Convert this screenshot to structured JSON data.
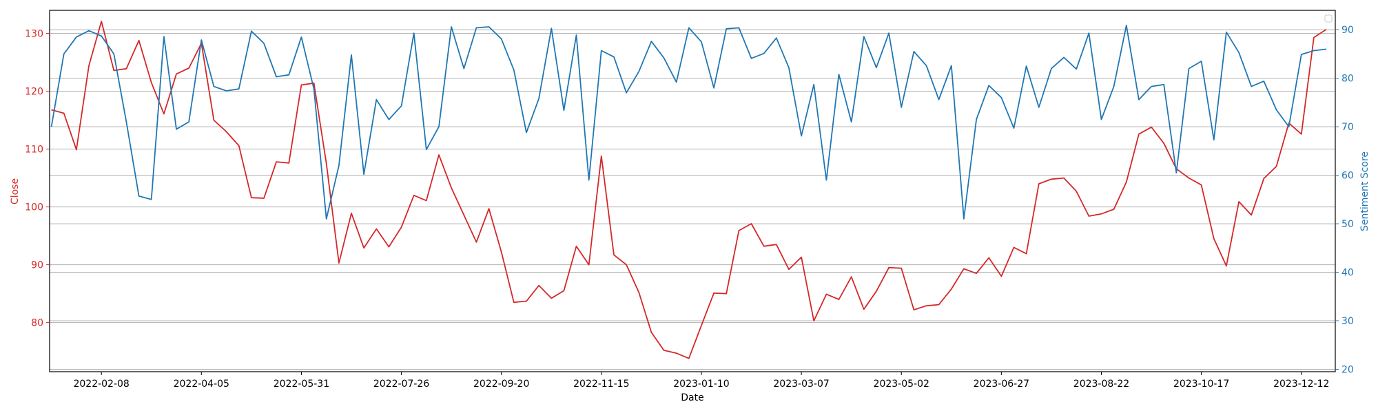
{
  "chart_data": {
    "type": "line",
    "title": "",
    "xlabel": "Date",
    "ylabel_left": "Close",
    "ylabel_right": "Sentiment Score",
    "grid": "horizontal",
    "legend": "top-right (empty)",
    "colors": {
      "close": "#d62728",
      "sentiment": "#1f77b4",
      "axis": "#000000",
      "grid": "#b0b0b0"
    },
    "x_range": [
      "2022-01-10",
      "2023-12-31"
    ],
    "y_left_range": [
      71.5,
      134
    ],
    "y_right_range": [
      19.5,
      94
    ],
    "x_ticks": [
      "2022-02-08",
      "2022-04-05",
      "2022-05-31",
      "2022-07-26",
      "2022-09-20",
      "2022-11-15",
      "2023-01-10",
      "2023-03-07",
      "2023-05-02",
      "2023-06-27",
      "2023-08-22",
      "2023-10-17",
      "2023-12-12"
    ],
    "y_left_ticks": [
      80,
      90,
      100,
      110,
      120,
      130
    ],
    "y_right_ticks": [
      20,
      30,
      40,
      50,
      60,
      70,
      80,
      90
    ],
    "x": [
      "2022-01-11",
      "2022-01-18",
      "2022-01-25",
      "2022-02-01",
      "2022-02-08",
      "2022-02-15",
      "2022-02-22",
      "2022-03-01",
      "2022-03-08",
      "2022-03-15",
      "2022-03-22",
      "2022-03-29",
      "2022-04-05",
      "2022-04-12",
      "2022-04-19",
      "2022-04-26",
      "2022-05-03",
      "2022-05-10",
      "2022-05-17",
      "2022-05-24",
      "2022-05-31",
      "2022-06-07",
      "2022-06-14",
      "2022-06-21",
      "2022-06-28",
      "2022-07-05",
      "2022-07-12",
      "2022-07-19",
      "2022-07-26",
      "2022-08-02",
      "2022-08-09",
      "2022-08-16",
      "2022-08-23",
      "2022-08-30",
      "2022-09-06",
      "2022-09-13",
      "2022-09-20",
      "2022-09-27",
      "2022-10-04",
      "2022-10-11",
      "2022-10-18",
      "2022-10-25",
      "2022-11-01",
      "2022-11-08",
      "2022-11-15",
      "2022-11-22",
      "2022-11-29",
      "2022-12-06",
      "2022-12-13",
      "2022-12-20",
      "2022-12-27",
      "2023-01-03",
      "2023-01-10",
      "2023-01-17",
      "2023-01-24",
      "2023-01-31",
      "2023-02-07",
      "2023-02-14",
      "2023-02-21",
      "2023-02-28",
      "2023-03-07",
      "2023-03-14",
      "2023-03-21",
      "2023-03-28",
      "2023-04-04",
      "2023-04-11",
      "2023-04-18",
      "2023-04-25",
      "2023-05-02",
      "2023-05-09",
      "2023-05-16",
      "2023-05-23",
      "2023-05-30",
      "2023-06-06",
      "2023-06-13",
      "2023-06-20",
      "2023-06-27",
      "2023-07-04",
      "2023-07-11",
      "2023-07-18",
      "2023-07-25",
      "2023-08-01",
      "2023-08-08",
      "2023-08-15",
      "2023-08-22",
      "2023-08-29",
      "2023-09-05",
      "2023-09-12",
      "2023-09-19",
      "2023-09-26",
      "2023-10-03",
      "2023-10-10",
      "2023-10-17",
      "2023-10-24",
      "2023-10-31",
      "2023-11-07",
      "2023-11-14",
      "2023-11-21",
      "2023-11-28",
      "2023-12-05",
      "2023-12-12",
      "2023-12-19",
      "2023-12-26"
    ],
    "series": [
      {
        "name": "Close",
        "axis": "left",
        "values": [
          116.8,
          116.2,
          109.9,
          124.4,
          132.1,
          123.6,
          123.9,
          128.8,
          121.5,
          116.1,
          123.0,
          124.0,
          128.3,
          115.0,
          113.0,
          110.6,
          101.6,
          101.5,
          107.8,
          107.6,
          121.1,
          121.4,
          107.5,
          90.3,
          98.9,
          92.9,
          96.2,
          93.1,
          96.5,
          102.0,
          101.1,
          109.0,
          103.3,
          98.6,
          93.9,
          99.7,
          92.2,
          83.5,
          83.7,
          86.4,
          84.2,
          85.5,
          93.2,
          90.0,
          108.8,
          91.7,
          90.0,
          85.2,
          78.3,
          75.2,
          74.7,
          73.8,
          79.5,
          85.1,
          85.0,
          95.9,
          97.1,
          93.2,
          93.5,
          89.2,
          91.3,
          80.3,
          84.9,
          84.0,
          87.9,
          82.3,
          85.4,
          89.5,
          89.4,
          82.2,
          82.9,
          83.1,
          85.8,
          89.3,
          88.5,
          91.2,
          88.0,
          93.0,
          91.9,
          104.0,
          104.8,
          105.0,
          102.7,
          98.4,
          98.8,
          99.6,
          104.3,
          112.6,
          113.8,
          111.0,
          106.6,
          105.0,
          103.8,
          94.5,
          89.8,
          100.9,
          98.6,
          104.9,
          107.0,
          114.5,
          112.6,
          129.3,
          130.7
        ]
      },
      {
        "name": "Sentiment Score",
        "axis": "right",
        "values": [
          70.0,
          85.0,
          88.5,
          89.8,
          88.7,
          85.0,
          71.0,
          55.7,
          55.0,
          88.6,
          69.5,
          71.0,
          87.9,
          78.3,
          77.4,
          77.8,
          89.7,
          87.2,
          80.3,
          80.7,
          88.5,
          77.8,
          51.0,
          62.0,
          84.8,
          60.2,
          75.6,
          71.5,
          74.3,
          89.3,
          65.3,
          70.0,
          90.6,
          82.0,
          90.4,
          90.6,
          88.1,
          81.7,
          68.8,
          75.8,
          90.3,
          73.4,
          88.9,
          59.0,
          85.7,
          84.4,
          77.0,
          81.4,
          87.6,
          84.2,
          79.2,
          90.4,
          87.5,
          78.0,
          90.2,
          90.4,
          84.1,
          85.1,
          88.3,
          82.2,
          68.1,
          78.7,
          59.0,
          80.8,
          71.0,
          88.6,
          82.2,
          89.3,
          74.0,
          85.5,
          82.6,
          75.6,
          82.6,
          51.0,
          71.5,
          78.5,
          76.0,
          69.7,
          82.5,
          74.0,
          82.0,
          84.3,
          81.9,
          89.3,
          71.5,
          78.3,
          90.9,
          75.6,
          78.3,
          78.7,
          60.5,
          82.0,
          83.5,
          67.3,
          89.5,
          85.3,
          78.3,
          79.4,
          73.5,
          70.0,
          84.9,
          85.7,
          86.0
        ]
      }
    ]
  }
}
